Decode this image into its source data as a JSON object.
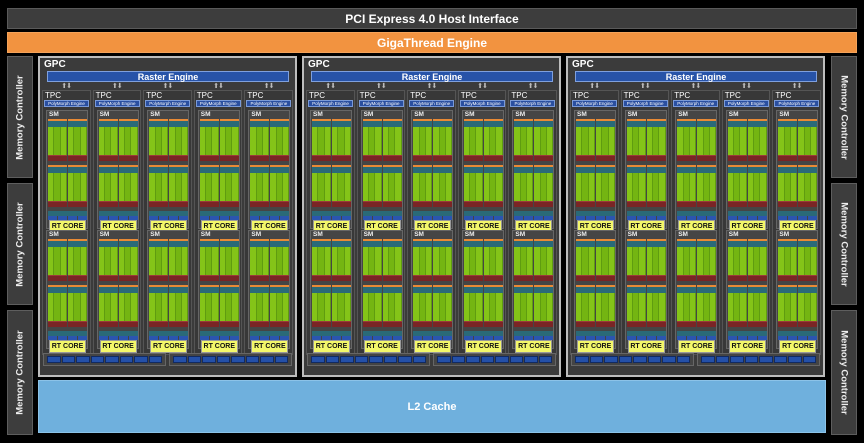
{
  "header": {
    "host_interface": "PCI Express 4.0 Host Interface",
    "gigathread": "GigaThread Engine"
  },
  "memory_controllers": {
    "label": "Memory Controller",
    "left_count": 3,
    "right_count": 3
  },
  "gpc": {
    "label": "GPC",
    "raster_engine": "Raster Engine",
    "count": 3,
    "tpc_per_gpc": 5,
    "sm_per_tpc": 2
  },
  "tpc": {
    "label": "TPC",
    "polymorph": "PolyMorph Engine",
    "arrows": "⇅ ⇅"
  },
  "sm": {
    "label": "SM",
    "rt_core": "RT CORE"
  },
  "l2": {
    "label": "L2 Cache"
  },
  "colors": {
    "host_interface": "#3d3d3d",
    "gigathread": "#f29340",
    "raster": "#2753a8",
    "cuda_cores": "#84c418",
    "rt_core": "#f3f76a",
    "l2_cache": "#6fb0dd"
  }
}
